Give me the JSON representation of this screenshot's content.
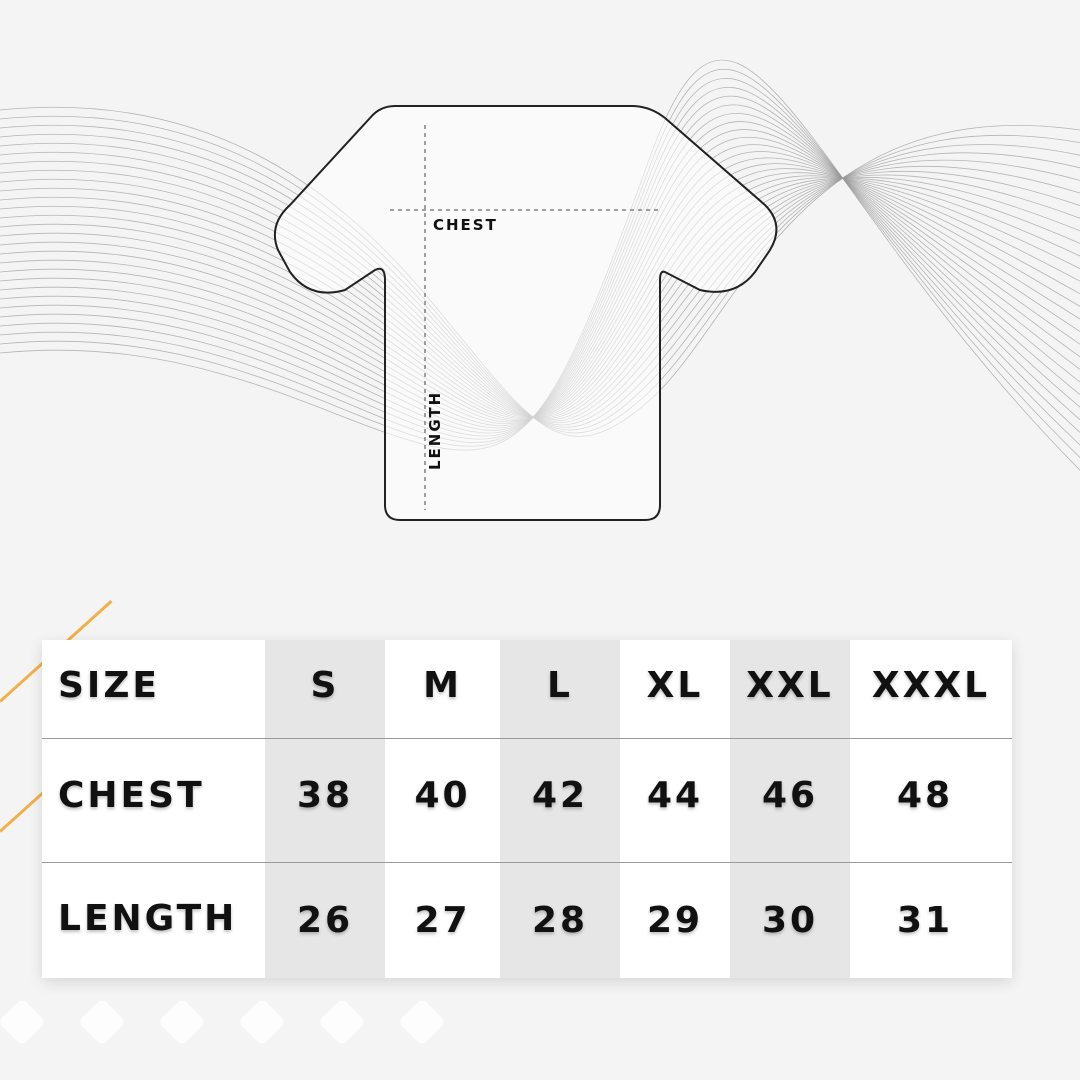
{
  "diagram": {
    "chest_label": "CHEST",
    "length_label": "LENGTH"
  },
  "table": {
    "headers": [
      "SIZE",
      "S",
      "M",
      "L",
      "XL",
      "XXL",
      "XXXL"
    ],
    "rows": [
      {
        "label": "CHEST",
        "values": [
          "38",
          "40",
          "42",
          "44",
          "46",
          "48"
        ]
      },
      {
        "label": "LENGTH",
        "values": [
          "26",
          "27",
          "28",
          "29",
          "30",
          "31"
        ]
      }
    ]
  },
  "colors": {
    "accent": "#f0b04a",
    "shaded_column": "#e6e6e6"
  }
}
